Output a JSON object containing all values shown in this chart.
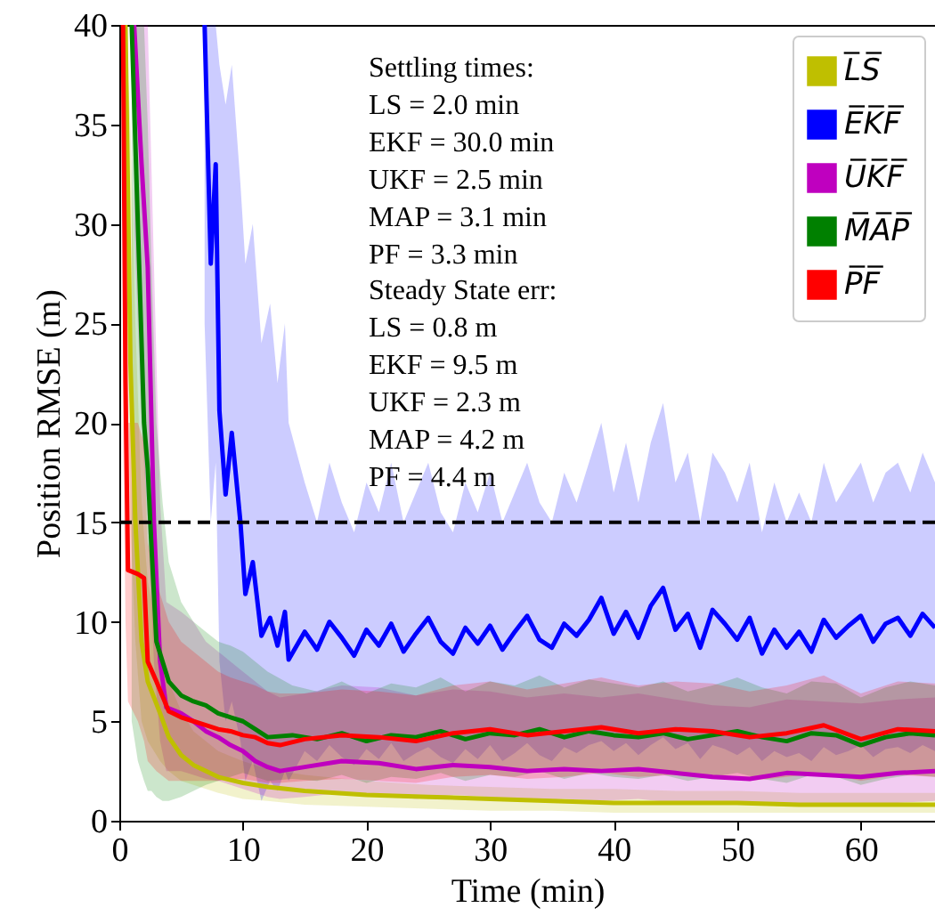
{
  "chart_data": {
    "type": "line",
    "xlabel": "Time (min)",
    "ylabel": "Position RMSE (m)",
    "xlim": [
      0,
      66
    ],
    "ylim": [
      0,
      40
    ],
    "xticks": [
      0,
      10,
      20,
      30,
      40,
      50,
      60
    ],
    "yticks": [
      0,
      5,
      10,
      15,
      20,
      25,
      30,
      35,
      40
    ],
    "grid": false,
    "legend": "top right",
    "annotations": [
      "Settling times:\nLS  = 2.0 min\nEKF = 30.0 min\nUKF = 2.5 min\nMAP = 3.1 min\nPF  = 3.3 min",
      "Steady State err:\nLS  = 0.8 m\nEKF = 9.5 m\nUKF = 2.3 m\nMAP = 4.2 m\nPF  = 4.4 m"
    ],
    "ref_lines": [
      {
        "axis": "y",
        "value": 15,
        "color": "#000000",
        "line_style": "dashed"
      }
    ],
    "series": [
      {
        "name": "L̅S̅",
        "color": "#bfbf00",
        "x": [
          0.5,
          0.9,
          1.3,
          1.8,
          2.3,
          3.3,
          4,
          5,
          6,
          8,
          10,
          12,
          15,
          20,
          25,
          30,
          35,
          40,
          45,
          50,
          55,
          60,
          66
        ],
        "values": [
          40,
          23,
          15,
          9,
          7,
          5.4,
          4.2,
          3.3,
          2.8,
          2.2,
          1.9,
          1.7,
          1.5,
          1.3,
          1.2,
          1.1,
          1.0,
          0.9,
          0.9,
          0.9,
          0.8,
          0.8,
          0.8
        ],
        "lower": [
          30,
          15,
          9,
          5,
          4,
          3,
          2.5,
          2,
          1.8,
          1.4,
          1.1,
          1,
          0.8,
          0.7,
          0.6,
          0.5,
          0.5,
          0.4,
          0.4,
          0.4,
          0.4,
          0.4,
          0.4
        ],
        "upper": [
          40,
          35,
          25,
          16,
          12,
          9,
          7,
          5.5,
          4.5,
          3.5,
          3,
          2.6,
          2.3,
          2,
          1.8,
          1.7,
          1.6,
          1.6,
          1.5,
          1.5,
          1.4,
          1.4,
          1.4
        ]
      },
      {
        "name": "E̅K̅F̅",
        "color": "#0000ff",
        "x": [
          6.9,
          7.4,
          7.8,
          8.1,
          8.6,
          9.1,
          9.8,
          10.2,
          10.8,
          11.5,
          12.2,
          12.8,
          13.4,
          13.7,
          15,
          16,
          17,
          18,
          19,
          20,
          21,
          22,
          23,
          24,
          25,
          26,
          27,
          28,
          29,
          30,
          31,
          32,
          33,
          34,
          35,
          36,
          37,
          38,
          39,
          40,
          41,
          42,
          43,
          44,
          45,
          46,
          47,
          48,
          49,
          50,
          51,
          52,
          53,
          54,
          55,
          56,
          57,
          58,
          59,
          60,
          61,
          62,
          63,
          64,
          65,
          66
        ],
        "values": [
          40,
          28,
          33,
          20.6,
          16.4,
          19.5,
          15,
          11.4,
          13,
          9.3,
          10.2,
          8.8,
          10.5,
          8.1,
          9.5,
          8.6,
          10.0,
          9.2,
          8.3,
          9.6,
          8.8,
          9.9,
          8.5,
          9.4,
          10.2,
          9.0,
          8.4,
          9.7,
          8.9,
          9.8,
          8.6,
          9.5,
          10.3,
          9.1,
          8.7,
          9.9,
          9.3,
          10.1,
          11.2,
          9.4,
          10.5,
          9.2,
          10.8,
          11.7,
          9.6,
          10.4,
          8.7,
          10.6,
          9.9,
          9.1,
          10.2,
          8.4,
          9.6,
          8.7,
          9.5,
          8.5,
          10.1,
          9.2,
          9.8,
          10.3,
          9.0,
          9.9,
          10.2,
          9.3,
          10.4,
          9.7
        ],
        "lower": [
          25,
          15,
          18,
          8,
          5,
          6,
          4,
          2,
          3,
          1,
          2,
          1.5,
          2.5,
          2,
          3.5,
          3.0,
          3.8,
          3.2,
          2.8,
          3.6,
          3.1,
          3.9,
          3.0,
          3.4,
          3.7,
          3.2,
          2.9,
          3.6,
          3.1,
          3.8,
          3.0,
          3.4,
          3.9,
          3.3,
          3.0,
          3.7,
          3.4,
          3.8,
          4.0,
          3.5,
          3.9,
          3.3,
          3.8,
          4.2,
          3.6,
          3.9,
          3.1,
          3.8,
          3.6,
          3.3,
          3.7,
          3.0,
          3.5,
          3.2,
          3.4,
          3.0,
          3.7,
          3.3,
          3.5,
          3.8,
          3.2,
          3.6,
          3.7,
          3.4,
          3.8,
          3.5
        ],
        "upper": [
          40,
          40,
          40,
          38,
          36,
          38,
          32,
          28,
          30,
          24,
          26,
          22,
          25,
          20,
          17,
          15,
          18,
          16,
          14.5,
          17,
          15.5,
          18,
          15,
          16.5,
          18,
          15.5,
          14.5,
          17,
          15.5,
          17.5,
          15,
          16.5,
          18,
          16,
          15,
          17.5,
          16,
          18,
          20,
          16.5,
          19,
          16,
          19,
          21,
          17,
          18.5,
          15,
          18.5,
          17.5,
          16,
          18,
          14.5,
          17,
          15,
          16.5,
          15,
          18,
          16,
          17,
          18,
          16,
          17.5,
          18,
          16.5,
          18.5,
          17
        ]
      },
      {
        "name": "U̅K̅F̅",
        "color": "#bf00bf",
        "x": [
          1.2,
          1.8,
          2.3,
          2.8,
          3.3,
          3.8,
          5,
          6,
          7,
          8,
          9,
          10,
          11,
          12,
          13,
          15,
          18,
          21,
          24,
          27,
          30,
          33,
          36,
          39,
          42,
          45,
          48,
          51,
          54,
          57,
          60,
          63,
          66
        ],
        "values": [
          40,
          33,
          27.8,
          15,
          8,
          5.7,
          5.4,
          5.0,
          4.5,
          4.2,
          3.8,
          3.5,
          3.0,
          2.7,
          2.5,
          2.7,
          3.0,
          2.9,
          2.6,
          2.8,
          2.7,
          2.5,
          2.6,
          2.5,
          2.6,
          2.4,
          2.2,
          2.1,
          2.4,
          2.3,
          2.2,
          2.4,
          2.5
        ],
        "lower": [
          30,
          20,
          15,
          8,
          4,
          2.5,
          2.5,
          2.3,
          2.1,
          2,
          1.8,
          1.6,
          1.4,
          1.2,
          1.1,
          1.2,
          1.4,
          1.3,
          1.1,
          1.3,
          1.2,
          1.0,
          1.1,
          1.0,
          1.1,
          0.9,
          0.8,
          0.8,
          0.9,
          0.9,
          0.8,
          0.9,
          1.0
        ],
        "upper": [
          40,
          40,
          40,
          28,
          16,
          11,
          10.5,
          10,
          9,
          8.5,
          8,
          7.5,
          7,
          6.5,
          6.2,
          6.4,
          6.8,
          6.7,
          6.3,
          6.6,
          6.5,
          6.2,
          6.4,
          6.2,
          6.4,
          6.1,
          5.8,
          5.7,
          6.1,
          6.0,
          5.9,
          6.1,
          6.2
        ]
      },
      {
        "name": "M̅A̅P̅",
        "color": "#008000",
        "x": [
          1.0,
          1.5,
          2.0,
          2.3,
          2.6,
          3.0,
          3.5,
          4.0,
          5,
          6,
          7,
          8,
          9,
          10,
          11,
          12,
          14,
          16,
          18,
          20,
          22,
          24,
          26,
          28,
          30,
          32,
          34,
          36,
          38,
          40,
          42,
          44,
          46,
          48,
          50,
          52,
          54,
          56,
          58,
          60,
          62,
          64,
          66
        ],
        "values": [
          40,
          30,
          20,
          17.7,
          13.8,
          9,
          8,
          7,
          6.3,
          6,
          5.8,
          5.4,
          5.2,
          5.0,
          4.6,
          4.2,
          4.3,
          4.1,
          4.4,
          4.0,
          4.3,
          4.2,
          4.5,
          4.1,
          4.4,
          4.3,
          4.6,
          4.2,
          4.5,
          4.3,
          4.2,
          4.4,
          4.1,
          4.3,
          4.5,
          4.2,
          4.0,
          4.4,
          4.3,
          3.8,
          4.2,
          4.4,
          4.3
        ],
        "lower": [
          5,
          3,
          2,
          1.5,
          1.5,
          1.2,
          1,
          1,
          1.2,
          1.5,
          1.8,
          2,
          2.2,
          2.4,
          2.2,
          2,
          2.1,
          2.0,
          2.3,
          1.9,
          2.2,
          2.1,
          2.4,
          2.0,
          2.3,
          2.2,
          2.5,
          2.1,
          2.4,
          2.2,
          2.1,
          2.3,
          2.0,
          2.2,
          2.4,
          2.1,
          1.9,
          2.3,
          2.2,
          1.8,
          2.1,
          2.3,
          2.2
        ],
        "upper": [
          40,
          40,
          40,
          35,
          28,
          20,
          16,
          13,
          11,
          10,
          9.5,
          9,
          8.8,
          8.5,
          8,
          7.5,
          6.8,
          6.5,
          7.0,
          6.4,
          6.9,
          6.7,
          7.2,
          6.5,
          7.0,
          6.8,
          7.3,
          6.7,
          7.1,
          6.9,
          6.7,
          7.0,
          6.5,
          6.8,
          7.2,
          6.7,
          6.4,
          7.0,
          6.9,
          6.2,
          6.7,
          7.0,
          6.8
        ]
      },
      {
        "name": "P̅F̅",
        "color": "#ff0000",
        "x": [
          0.3,
          0.5,
          0.7,
          1.5,
          2.0,
          2.3,
          3.0,
          4.0,
          5,
          6,
          7,
          8,
          9,
          10,
          11,
          12,
          13,
          15,
          18,
          21,
          24,
          27,
          30,
          33,
          36,
          39,
          42,
          45,
          48,
          51,
          54,
          57,
          60,
          63,
          66
        ],
        "values": [
          40,
          22,
          12.6,
          12.4,
          12.2,
          8,
          7,
          5.5,
          5.2,
          5.0,
          4.8,
          4.6,
          4.5,
          4.3,
          4.2,
          3.9,
          3.8,
          4.1,
          4.3,
          4.2,
          4.0,
          4.4,
          4.6,
          4.3,
          4.5,
          4.7,
          4.4,
          4.6,
          4.5,
          4.2,
          4.4,
          4.8,
          4.1,
          4.6,
          4.5
        ],
        "lower": [
          20,
          10,
          6,
          5,
          4,
          3,
          2.5,
          2,
          2,
          2,
          2,
          2,
          2.1,
          2.1,
          2,
          1.9,
          1.9,
          2.0,
          2.1,
          2.0,
          1.9,
          2.2,
          2.3,
          2.1,
          2.2,
          2.4,
          2.2,
          2.3,
          2.2,
          2.0,
          2.2,
          2.4,
          2.0,
          2.3,
          2.2
        ],
        "upper": [
          40,
          35,
          20,
          20,
          19,
          14,
          12,
          10,
          9,
          8.5,
          8,
          7.5,
          7.2,
          7,
          6.8,
          6.5,
          6.4,
          6.4,
          6.6,
          6.5,
          6.3,
          6.8,
          7.0,
          6.6,
          6.9,
          7.2,
          6.8,
          7.0,
          6.9,
          6.5,
          6.8,
          7.3,
          6.4,
          7.0,
          6.9
        ]
      }
    ]
  }
}
